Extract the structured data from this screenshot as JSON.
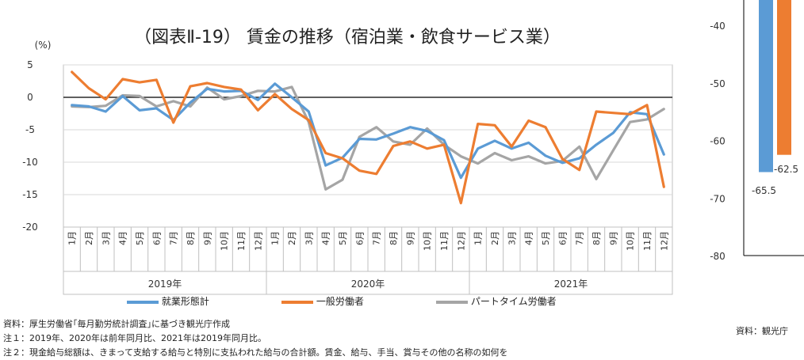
{
  "left_chart": {
    "chart_data": {
      "type": "line",
      "title": "（図表Ⅱ-19） 賃金の推移（宿泊業・飲食サービス業）",
      "ylabel": "(%)",
      "ylim": [
        -20,
        5
      ],
      "yticks": [
        5,
        0,
        -5,
        -10,
        -15,
        -20
      ],
      "month_labels": [
        "1月",
        "2月",
        "3月",
        "4月",
        "5月",
        "6月",
        "7月",
        "8月",
        "9月",
        "10月",
        "11月",
        "12月"
      ],
      "year_groups": [
        "2019年",
        "2020年",
        "2021年"
      ],
      "series": [
        {
          "name": "就業形態計",
          "color": "#5b9bd5",
          "values": [
            -1.2,
            -1.4,
            -2.2,
            0.2,
            -2.0,
            -1.7,
            -3.5,
            -0.8,
            1.3,
            0.9,
            1.0,
            -0.4,
            2.1,
            0.0,
            -2.2,
            -10.5,
            -9.3,
            -6.4,
            -6.5,
            -5.6,
            -4.6,
            -5.2,
            -6.6,
            -12.4,
            -7.9,
            -6.7,
            -7.9,
            -7.0,
            -9.0,
            -10.1,
            -9.4,
            -7.3,
            -5.5,
            -2.3,
            -2.6,
            -8.8
          ]
        },
        {
          "name": "一般労働者",
          "color": "#ed7d31",
          "values": [
            3.9,
            1.4,
            -0.3,
            2.8,
            2.3,
            2.7,
            -3.9,
            1.7,
            2.2,
            1.6,
            1.2,
            -2.0,
            0.5,
            -1.8,
            -3.5,
            -8.6,
            -9.4,
            -11.3,
            -11.8,
            -7.5,
            -6.8,
            -7.9,
            -7.3,
            -16.3,
            -4.1,
            -4.3,
            -7.6,
            -3.6,
            -4.6,
            -9.5,
            -11.2,
            -2.2,
            -2.4,
            -2.6,
            -1.2,
            -13.8
          ]
        },
        {
          "name": "パートタイム労働者",
          "color": "#a5a5a5",
          "values": [
            -1.4,
            -1.5,
            -1.3,
            0.3,
            0.2,
            -1.4,
            -0.6,
            -1.4,
            1.5,
            -0.3,
            0.2,
            1.0,
            0.9,
            1.6,
            -3.8,
            -14.2,
            -12.7,
            -6.1,
            -4.6,
            -6.8,
            -7.3,
            -4.8,
            -7.3,
            -9.1,
            -10.2,
            -8.6,
            -9.7,
            -9.1,
            -10.2,
            -9.8,
            -7.6,
            -12.6,
            -8.2,
            -3.8,
            -3.4,
            -1.8
          ]
        }
      ]
    }
  },
  "right_chart": {
    "chart_data": {
      "type": "bar",
      "yticks": [
        -40,
        -50,
        -60,
        -70,
        -80
      ],
      "ylim": [
        -80,
        -35
      ],
      "series": [
        {
          "name": "blue",
          "color": "#5b9bd5",
          "values": [
            -65.5
          ]
        },
        {
          "name": "orange",
          "color": "#ed7d31",
          "values": [
            -62.5
          ]
        }
      ],
      "data_labels": [
        "-65.5",
        "-62.5"
      ]
    }
  },
  "notes": {
    "source": "資料：厚生労働省｢毎月勤労統計調査｣に基づき観光庁作成",
    "note1": "注１：2019年、2020年は前年同月比、2021年は2019年同月比。",
    "note2": "注２：現金給与総額は、きまって支給する給与と特別に支払われた給与の合計額。賃金、給与、手当、賞与その他の名称の如何を",
    "right_source": "資料：観光庁"
  }
}
